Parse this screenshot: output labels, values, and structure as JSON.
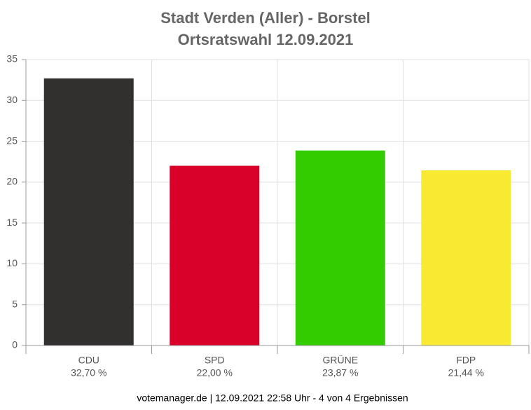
{
  "chart_data": {
    "type": "bar",
    "title": "Stadt Verden (Aller) - Borstel",
    "subtitle": "Ortsratswahl 12.09.2021",
    "categories": [
      "CDU",
      "SPD",
      "GRÜNE",
      "FDP"
    ],
    "values": [
      32.7,
      22.0,
      23.87,
      21.44
    ],
    "value_labels": [
      "32,70 %",
      "22,00 %",
      "23,87 %",
      "21,44 %"
    ],
    "colors": [
      "#32302f",
      "#d9002a",
      "#33cc00",
      "#f8e932"
    ],
    "ylim": [
      0,
      35
    ],
    "yticks": [
      0,
      5,
      10,
      15,
      20,
      25,
      30,
      35
    ],
    "grid": true,
    "footer": "votemanager.de | 12.09.2021 22:58 Uhr - 4 von 4 Ergebnissen"
  }
}
